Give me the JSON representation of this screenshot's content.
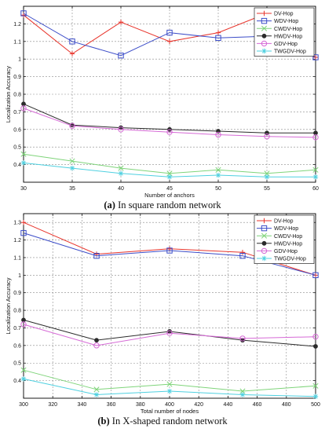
{
  "captions": [
    {
      "letter": "(a)",
      "text": " In square random network"
    },
    {
      "letter": "(b)",
      "text": " In X-shaped random network"
    }
  ],
  "chart_data": [
    {
      "type": "line",
      "xlabel": "Number of anchors",
      "ylabel": "Localization Accuracy",
      "xlim": [
        30,
        60
      ],
      "ylim": [
        0.3,
        1.3
      ],
      "xticks": [
        30,
        35,
        40,
        45,
        50,
        55,
        60
      ],
      "yticks": [
        0.4,
        0.5,
        0.6,
        0.7,
        0.8,
        0.9,
        1,
        1.1,
        1.2
      ],
      "grid": true,
      "legend_position": "top-right",
      "x": [
        30,
        35,
        40,
        45,
        50,
        55,
        60
      ],
      "series": [
        {
          "name": "DV-Hop",
          "color": "#e8352c",
          "marker": "plus",
          "values": [
            1.25,
            1.03,
            1.21,
            1.1,
            1.15,
            1.26,
            1.01
          ]
        },
        {
          "name": "WDV-Hop",
          "color": "#3b4cc8",
          "marker": "square",
          "values": [
            1.26,
            1.1,
            1.02,
            1.15,
            1.12,
            1.13,
            1.01
          ]
        },
        {
          "name": "CWDV-Hop",
          "color": "#7fd47a",
          "marker": "x",
          "values": [
            0.46,
            0.42,
            0.38,
            0.35,
            0.37,
            0.35,
            0.37
          ]
        },
        {
          "name": "HWDV-Hop",
          "color": "#2b2b2b",
          "marker": "dot",
          "values": [
            0.745,
            0.625,
            0.61,
            0.6,
            0.59,
            0.58,
            0.58
          ]
        },
        {
          "name": "GDV-Hop",
          "color": "#d66ad6",
          "marker": "circle",
          "values": [
            0.72,
            0.62,
            0.6,
            0.585,
            0.57,
            0.56,
            0.555
          ]
        },
        {
          "name": "TWGDV-Hop",
          "color": "#4fd0e0",
          "marker": "star",
          "values": [
            0.41,
            0.38,
            0.35,
            0.33,
            0.34,
            0.33,
            0.33
          ]
        }
      ]
    },
    {
      "type": "line",
      "xlabel": "Total number of nodes",
      "ylabel": "Localization Accuracy",
      "xlim": [
        300,
        500
      ],
      "ylim": [
        0.3,
        1.35
      ],
      "xticks": [
        300,
        320,
        340,
        360,
        380,
        400,
        420,
        440,
        460,
        480,
        500
      ],
      "yticks": [
        0.4,
        0.5,
        0.6,
        0.7,
        0.8,
        0.9,
        1,
        1.1,
        1.2,
        1.3
      ],
      "grid": true,
      "legend_position": "top-right",
      "x": [
        300,
        350,
        400,
        450,
        500
      ],
      "series": [
        {
          "name": "DV-Hop",
          "color": "#e8352c",
          "marker": "plus",
          "values": [
            1.3,
            1.12,
            1.15,
            1.13,
            1.0
          ]
        },
        {
          "name": "WDV-Hop",
          "color": "#3b4cc8",
          "marker": "square",
          "values": [
            1.24,
            1.11,
            1.14,
            1.11,
            1.0
          ]
        },
        {
          "name": "CWDV-Hop",
          "color": "#7fd47a",
          "marker": "x",
          "values": [
            0.46,
            0.35,
            0.38,
            0.34,
            0.37
          ]
        },
        {
          "name": "HWDV-Hop",
          "color": "#2b2b2b",
          "marker": "dot",
          "values": [
            0.745,
            0.63,
            0.68,
            0.63,
            0.595
          ]
        },
        {
          "name": "GDV-Hop",
          "color": "#d66ad6",
          "marker": "circle",
          "values": [
            0.72,
            0.6,
            0.67,
            0.64,
            0.65
          ]
        },
        {
          "name": "TWGDV-Hop",
          "color": "#4fd0e0",
          "marker": "star",
          "values": [
            0.41,
            0.32,
            0.34,
            0.32,
            0.31
          ]
        }
      ]
    }
  ]
}
